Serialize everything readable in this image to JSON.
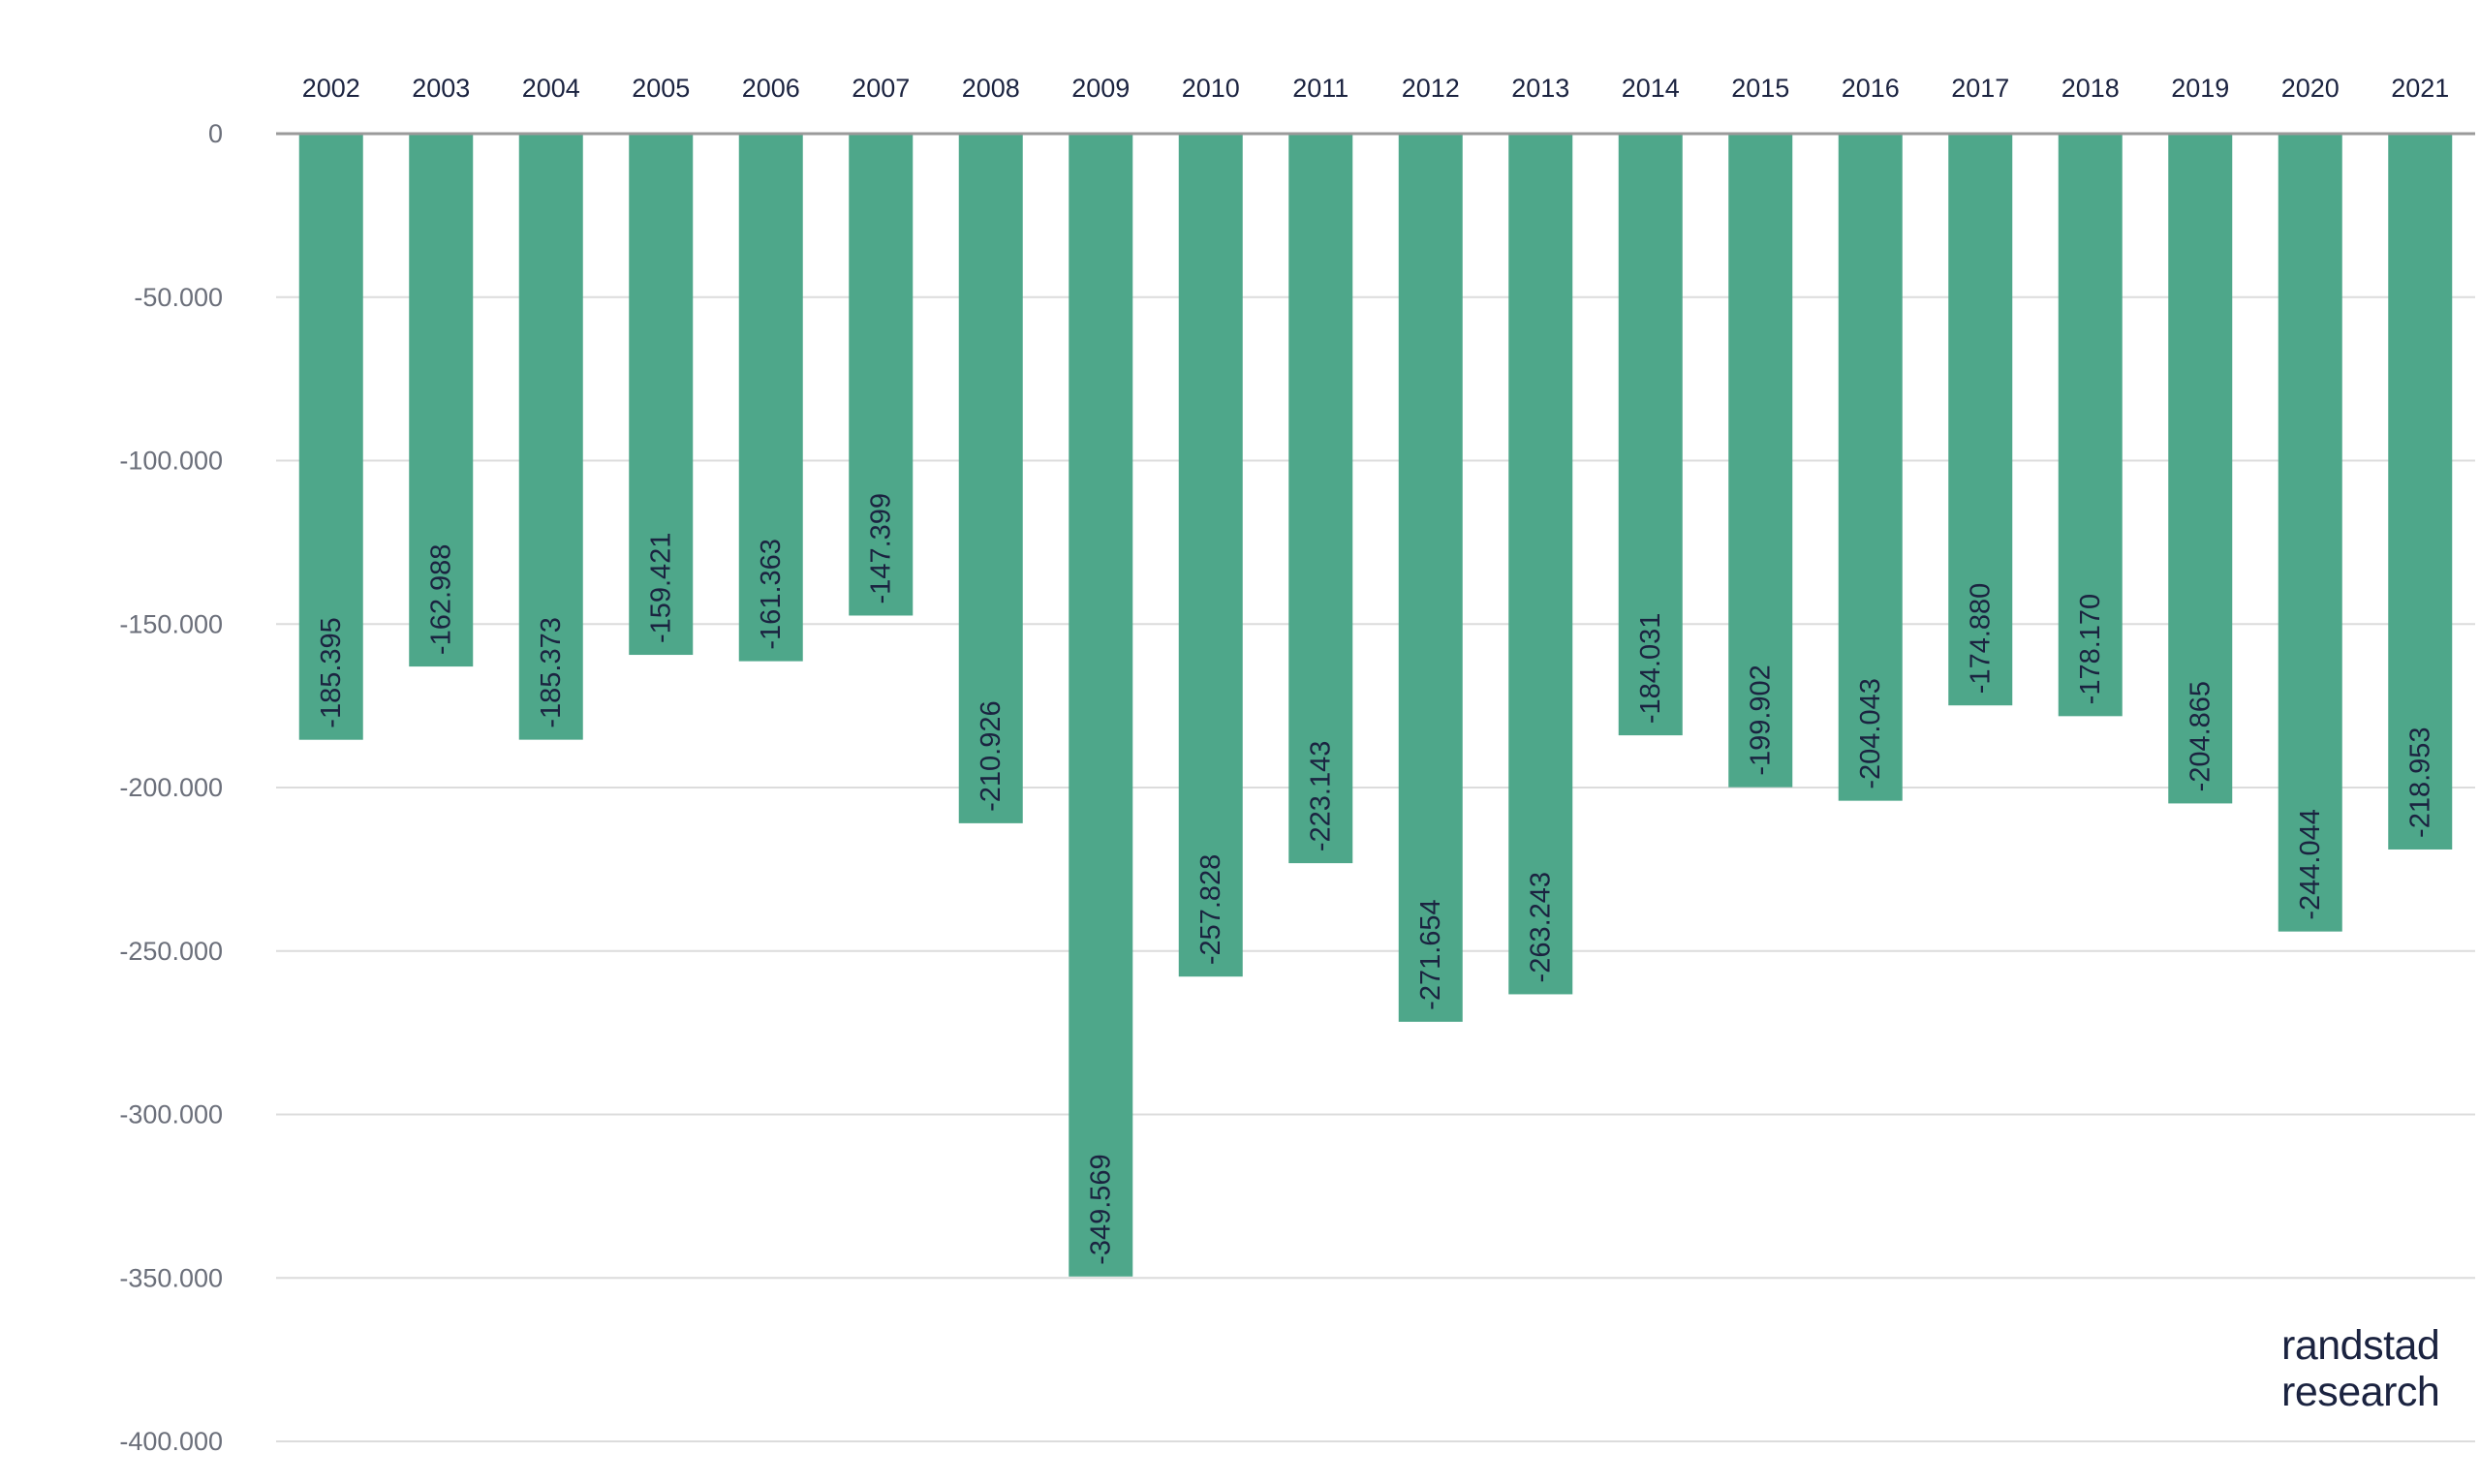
{
  "chart_data": {
    "type": "bar",
    "title": "",
    "xlabel": "",
    "ylabel": "",
    "categories": [
      "2002",
      "2003",
      "2004",
      "2005",
      "2006",
      "2007",
      "2008",
      "2009",
      "2010",
      "2011",
      "2012",
      "2013",
      "2014",
      "2015",
      "2016",
      "2017",
      "2018",
      "2019",
      "2020",
      "2021"
    ],
    "values": [
      -185395,
      -162988,
      -185373,
      -159421,
      -161363,
      -147399,
      -210926,
      -349569,
      -257828,
      -223143,
      -271654,
      -263243,
      -184031,
      -199902,
      -204043,
      -174880,
      -178170,
      -204865,
      -244044,
      -218953
    ],
    "value_labels": [
      "-185.395",
      "-162.988",
      "-185.373",
      "-159.421",
      "-161.363",
      "-147.399",
      "-210.926",
      "-349.569",
      "-257.828",
      "-223.143",
      "-271.654",
      "-263.243",
      "-184.031",
      "-199.902",
      "-204.043",
      "-174.880",
      "-178.170",
      "-204.865",
      "-244.044",
      "-218.953"
    ],
    "ylim": [
      -400000,
      0
    ],
    "y_ticks": [
      0,
      -50000,
      -100000,
      -150000,
      -200000,
      -250000,
      -300000,
      -350000,
      -400000
    ],
    "y_tick_labels": [
      "0",
      "-50.000",
      "-100.000",
      "-150.000",
      "-200.000",
      "-250.000",
      "-300.000",
      "-350.000",
      "-400.000"
    ],
    "grid": true,
    "x_axis_position": "top",
    "bar_color": "#4ea78a",
    "label_color": "#1b2340",
    "tick_label_color": "#6b6f7a",
    "grid_color": "#dcdcdc",
    "axis_color": "#9a9a9a"
  },
  "brand": {
    "line1": "randstad",
    "line2": "research"
  }
}
